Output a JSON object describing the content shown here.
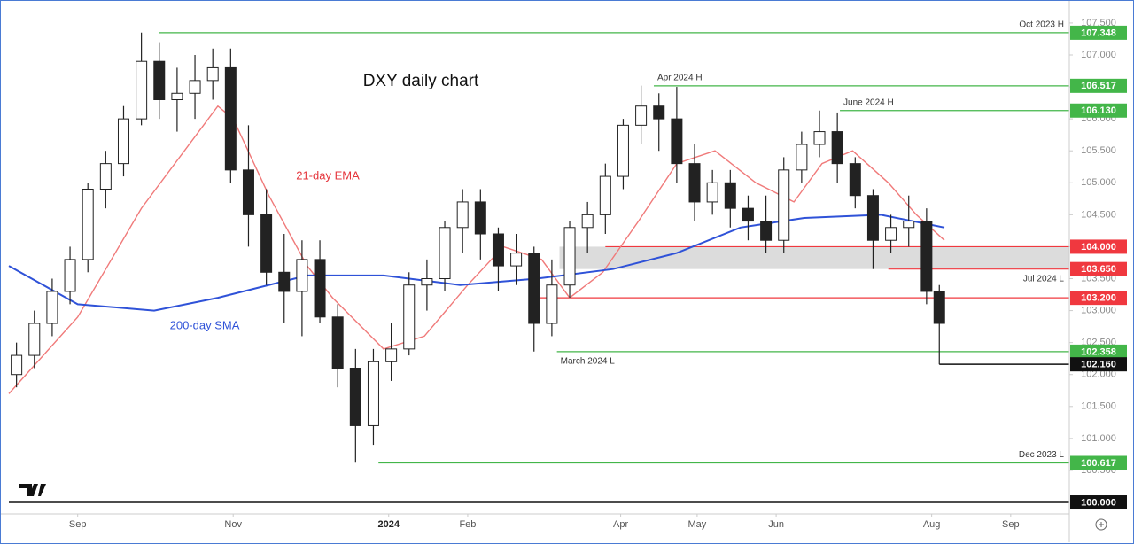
{
  "chart_data": {
    "type": "candlestick",
    "title": "DXY daily chart",
    "annotations": {
      "ema": "21-day EMA",
      "sma": "200-day SMA"
    },
    "up_color": "#ffffff",
    "down_color": "#222222",
    "wick_color": "#222222",
    "x": [
      -24,
      -17,
      -10,
      -3,
      4,
      11,
      18,
      25,
      32,
      39,
      46,
      53,
      60,
      67,
      74,
      81,
      88,
      95,
      102,
      109,
      116,
      123,
      130,
      137,
      144,
      151,
      158,
      165,
      172,
      179,
      186,
      193,
      200,
      207,
      214,
      221,
      228,
      235,
      242,
      249,
      256,
      263,
      270,
      277,
      284,
      291,
      298,
      305,
      312,
      319,
      326,
      333,
      338
    ],
    "open": [
      102.0,
      102.3,
      102.8,
      103.3,
      103.8,
      104.9,
      105.3,
      106.0,
      106.9,
      106.3,
      106.4,
      106.6,
      106.8,
      105.2,
      104.5,
      103.6,
      103.3,
      103.8,
      102.9,
      102.1,
      101.2,
      102.2,
      102.4,
      103.4,
      103.5,
      104.3,
      104.7,
      104.2,
      103.7,
      103.9,
      102.8,
      103.4,
      104.3,
      104.5,
      105.1,
      105.9,
      106.2,
      106.0,
      105.3,
      104.7,
      105.0,
      104.6,
      104.4,
      104.1,
      105.2,
      105.6,
      105.8,
      105.3,
      104.8,
      104.1,
      104.3,
      104.4,
      103.3
    ],
    "high": [
      102.5,
      103.0,
      103.5,
      104.0,
      105.0,
      105.5,
      106.2,
      107.35,
      107.2,
      106.8,
      107.0,
      107.1,
      107.1,
      105.9,
      104.9,
      104.2,
      104.1,
      104.1,
      103.1,
      102.4,
      102.4,
      102.8,
      103.6,
      103.8,
      104.4,
      104.9,
      104.9,
      104.3,
      104.2,
      104.0,
      103.8,
      104.4,
      104.7,
      105.3,
      106.0,
      106.52,
      106.4,
      106.5,
      105.6,
      105.2,
      105.2,
      104.8,
      104.8,
      105.4,
      105.8,
      106.13,
      106.1,
      105.4,
      104.9,
      104.5,
      104.8,
      104.6,
      103.4
    ],
    "low": [
      101.8,
      102.1,
      102.6,
      103.1,
      103.6,
      104.6,
      105.1,
      105.9,
      106.0,
      105.8,
      106.0,
      106.3,
      105.0,
      104.0,
      103.4,
      102.8,
      102.6,
      102.8,
      101.8,
      100.62,
      100.9,
      101.9,
      102.3,
      103.0,
      103.3,
      103.9,
      103.8,
      103.3,
      103.4,
      102.36,
      102.6,
      103.2,
      103.9,
      104.2,
      104.9,
      105.6,
      105.5,
      105.0,
      104.4,
      104.5,
      104.3,
      104.1,
      103.9,
      103.9,
      105.0,
      105.4,
      105.0,
      104.6,
      103.65,
      103.9,
      104.0,
      103.1,
      102.16
    ],
    "close": [
      102.3,
      102.8,
      103.3,
      103.8,
      104.9,
      105.3,
      106.0,
      106.9,
      106.3,
      106.4,
      106.6,
      106.8,
      105.2,
      104.5,
      103.6,
      103.3,
      103.8,
      102.9,
      102.1,
      101.2,
      102.2,
      102.4,
      103.4,
      103.5,
      104.3,
      104.7,
      104.2,
      103.7,
      103.9,
      102.8,
      103.4,
      104.3,
      104.5,
      105.1,
      105.9,
      106.2,
      106.0,
      105.3,
      104.7,
      105.0,
      104.6,
      104.4,
      104.1,
      105.2,
      105.6,
      105.8,
      105.3,
      104.8,
      104.1,
      104.3,
      104.4,
      103.3,
      102.8
    ],
    "series": [
      {
        "name": "21-day EMA",
        "color": "#f07a7a",
        "x": [
          -27,
          0,
          25,
          55,
          61,
          75,
          90,
          100,
          120,
          136,
          153,
          167,
          182,
          193,
          206,
          220,
          235,
          250,
          266,
          281,
          292,
          304,
          318,
          329,
          340
        ],
        "values": [
          101.7,
          102.9,
          104.6,
          106.2,
          106.0,
          104.8,
          103.7,
          103.2,
          102.4,
          102.6,
          103.4,
          104.0,
          103.8,
          103.2,
          103.6,
          104.4,
          105.3,
          105.5,
          105.0,
          104.7,
          105.3,
          105.5,
          105.0,
          104.5,
          104.1
        ]
      },
      {
        "name": "200-day SMA",
        "color": "#2f52d8",
        "x": [
          -27,
          0,
          30,
          55,
          90,
          120,
          150,
          180,
          210,
          235,
          260,
          285,
          315,
          340
        ],
        "values": [
          103.7,
          103.1,
          103.0,
          103.2,
          103.55,
          103.55,
          103.4,
          103.5,
          103.65,
          103.9,
          104.3,
          104.45,
          104.5,
          104.3
        ]
      }
    ],
    "zone": {
      "from": 189,
      "low": 103.65,
      "high": 104.0,
      "color": "#d3d3d3"
    },
    "levels": [
      {
        "value": 107.348,
        "value_label": "107.348",
        "name": "Oct 2023 H",
        "from": 32,
        "color": "#43b649"
      },
      {
        "value": 106.517,
        "value_label": "106.517",
        "name": "Apr 2024 H",
        "from": 226,
        "color": "#43b649"
      },
      {
        "value": 106.13,
        "value_label": "106.130",
        "name": "June 2024 H",
        "from": 299,
        "color": "#43b649"
      },
      {
        "value": 104.0,
        "value_label": "104.000",
        "from": 207,
        "color": "#f0383f"
      },
      {
        "value": 103.65,
        "value_label": "103.650",
        "name": "Jul 2024 L",
        "from": 318,
        "color": "#f0383f"
      },
      {
        "value": 103.2,
        "value_label": "103.200",
        "from": 179,
        "color": "#f0383f"
      },
      {
        "value": 102.358,
        "value_label": "102.358",
        "name": "March 2024 L",
        "from": 188,
        "color": "#43b649"
      },
      {
        "value": 102.16,
        "value_label": "102.160",
        "from": 338,
        "color": "#111111"
      },
      {
        "value": 100.617,
        "value_label": "100.617",
        "name": "Dec 2023 L",
        "from": 118,
        "color": "#43b649"
      },
      {
        "value": 100.0,
        "value_label": "100.000",
        "from": -27,
        "color": "#111111"
      }
    ],
    "xlim": [
      -27,
      389
    ],
    "ylim": [
      99.82,
      107.79
    ],
    "xticks": [
      {
        "value": 0,
        "label": "Sep"
      },
      {
        "value": 61,
        "label": "Nov"
      },
      {
        "value": 122,
        "label": "2024"
      },
      {
        "value": 153,
        "label": "Feb"
      },
      {
        "value": 213,
        "label": "Apr"
      },
      {
        "value": 243,
        "label": "May"
      },
      {
        "value": 274,
        "label": "Jun"
      },
      {
        "value": 335,
        "label": "Aug"
      },
      {
        "value": 366,
        "label": "Sep"
      }
    ],
    "yticks": [
      {
        "value": 100.5,
        "label": "100.500"
      },
      {
        "value": 101,
        "label": "101.000"
      },
      {
        "value": 101.5,
        "label": "101.500"
      },
      {
        "value": 102,
        "label": "102.000"
      },
      {
        "value": 102.5,
        "label": "102.500"
      },
      {
        "value": 103,
        "label": "103.000"
      },
      {
        "value": 103.5,
        "label": "103.500"
      },
      {
        "value": 104,
        "label": "104.000"
      },
      {
        "value": 104.5,
        "label": "104.500"
      },
      {
        "value": 105,
        "label": "105.000"
      },
      {
        "value": 105.5,
        "label": "105.500"
      },
      {
        "value": 106,
        "label": "106.000"
      },
      {
        "value": 106.5,
        "label": "106.500"
      },
      {
        "value": 107,
        "label": "107.000"
      },
      {
        "value": 107.5,
        "label": "107.500"
      }
    ]
  }
}
